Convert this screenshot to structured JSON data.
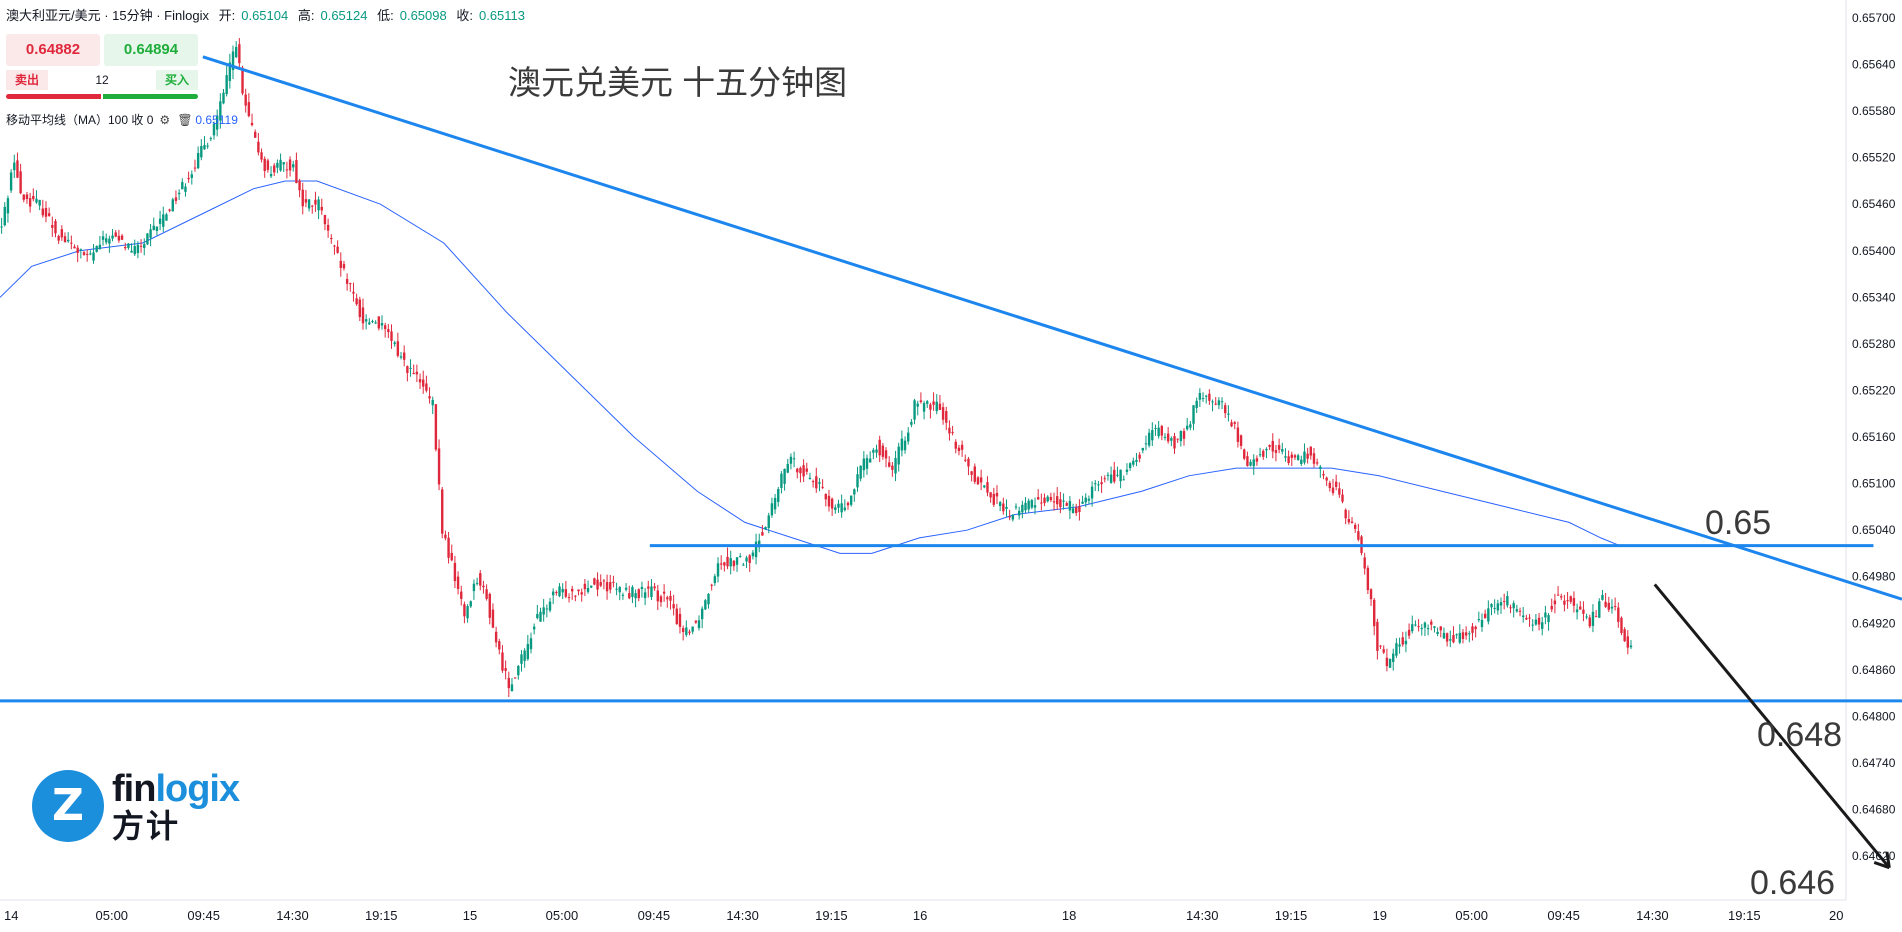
{
  "header": {
    "symbol": "澳大利亚元/美元 · 15分钟 · Finlogix",
    "open_label": "开:",
    "open": "0.65104",
    "high_label": "高:",
    "high": "0.65124",
    "low_label": "低:",
    "low": "0.65098",
    "close_label": "收:",
    "close": "0.65113"
  },
  "trade": {
    "sell_price": "0.64882",
    "buy_price": "0.64894",
    "sell_label": "卖出",
    "buy_label": "买入",
    "quantity": "12"
  },
  "indicator": {
    "label": "移动平均线（MA）100 收 0",
    "value": "0.65119"
  },
  "title": "澳元兑美元 十五分钟图",
  "logo": {
    "text_a": "fin",
    "text_b": "logix",
    "cn": "方计",
    "mark": "Z"
  },
  "levels": {
    "top": "0.65",
    "mid": "0.648",
    "bottom": "0.646"
  },
  "colors": {
    "up": "#089981",
    "down": "#e0283c",
    "trendline": "#1c86ee",
    "ma": "#2962ff",
    "arrow": "#1a1a1a"
  },
  "chart_data": {
    "type": "candlestick",
    "title": "澳元兑美元 十五分钟图",
    "y_ticks": [
      "0.65700",
      "0.65640",
      "0.65580",
      "0.65520",
      "0.65460",
      "0.65400",
      "0.65340",
      "0.65280",
      "0.65220",
      "0.65160",
      "0.65100",
      "0.65040",
      "0.64980",
      "0.64920",
      "0.64860",
      "0.64800",
      "0.64740",
      "0.64680",
      "0.64620"
    ],
    "ylim": [
      0.6459,
      0.6572
    ],
    "x_ticks": [
      "14",
      "05:00",
      "09:45",
      "14:30",
      "19:15",
      "15",
      "05:00",
      "09:45",
      "14:30",
      "19:15",
      "16",
      "18",
      "14:30",
      "19:15",
      "19",
      "05:00",
      "09:45",
      "14:30",
      "19:15",
      "20"
    ],
    "x_tick_index": [
      0,
      34,
      63,
      91,
      119,
      147,
      176,
      205,
      233,
      261,
      289,
      336,
      378,
      406,
      434,
      463,
      492,
      520,
      549,
      578
    ],
    "path": [
      [
        0,
        0.6543
      ],
      [
        4,
        0.6552
      ],
      [
        6,
        0.6547
      ],
      [
        12,
        0.6546
      ],
      [
        18,
        0.6542
      ],
      [
        27,
        0.6539
      ],
      [
        34,
        0.6542
      ],
      [
        42,
        0.654
      ],
      [
        45,
        0.6541
      ],
      [
        52,
        0.6545
      ],
      [
        58,
        0.6549
      ],
      [
        66,
        0.6555
      ],
      [
        70,
        0.656
      ],
      [
        72,
        0.6564
      ],
      [
        74,
        0.6567
      ],
      [
        76,
        0.656
      ],
      [
        80,
        0.6554
      ],
      [
        84,
        0.655
      ],
      [
        88,
        0.6551
      ],
      [
        92,
        0.6551
      ],
      [
        95,
        0.6546
      ],
      [
        100,
        0.6546
      ],
      [
        104,
        0.6541
      ],
      [
        109,
        0.6536
      ],
      [
        114,
        0.6531
      ],
      [
        118,
        0.6531
      ],
      [
        122,
        0.6529
      ],
      [
        128,
        0.6525
      ],
      [
        132,
        0.6523
      ],
      [
        136,
        0.652
      ],
      [
        139,
        0.6504
      ],
      [
        143,
        0.6498
      ],
      [
        146,
        0.6493
      ],
      [
        150,
        0.6498
      ],
      [
        153,
        0.6495
      ],
      [
        157,
        0.6488
      ],
      [
        160,
        0.6484
      ],
      [
        165,
        0.6488
      ],
      [
        168,
        0.6492
      ],
      [
        175,
        0.6496
      ],
      [
        180,
        0.6496
      ],
      [
        186,
        0.6497
      ],
      [
        190,
        0.6497
      ],
      [
        196,
        0.6496
      ],
      [
        200,
        0.6496
      ],
      [
        205,
        0.6496
      ],
      [
        210,
        0.6495
      ],
      [
        215,
        0.6491
      ],
      [
        219,
        0.6492
      ],
      [
        222,
        0.6495
      ],
      [
        226,
        0.65
      ],
      [
        230,
        0.65
      ],
      [
        236,
        0.65
      ],
      [
        240,
        0.6504
      ],
      [
        244,
        0.6508
      ],
      [
        248,
        0.6513
      ],
      [
        252,
        0.6512
      ],
      [
        257,
        0.651
      ],
      [
        262,
        0.6507
      ],
      [
        267,
        0.6507
      ],
      [
        271,
        0.6512
      ],
      [
        276,
        0.6515
      ],
      [
        281,
        0.6512
      ],
      [
        285,
        0.6516
      ],
      [
        288,
        0.652
      ],
      [
        292,
        0.652
      ],
      [
        296,
        0.652
      ],
      [
        300,
        0.6516
      ],
      [
        305,
        0.6512
      ],
      [
        309,
        0.651
      ],
      [
        313,
        0.6508
      ],
      [
        318,
        0.6506
      ],
      [
        322,
        0.6507
      ],
      [
        327,
        0.6508
      ],
      [
        331,
        0.6508
      ],
      [
        336,
        0.6507
      ],
      [
        340,
        0.6507
      ],
      [
        345,
        0.651
      ],
      [
        350,
        0.6511
      ],
      [
        354,
        0.6511
      ],
      [
        358,
        0.6513
      ],
      [
        362,
        0.6516
      ],
      [
        365,
        0.6517
      ],
      [
        370,
        0.6515
      ],
      [
        374,
        0.6517
      ],
      [
        377,
        0.6521
      ],
      [
        381,
        0.6521
      ],
      [
        385,
        0.652
      ],
      [
        389,
        0.6517
      ],
      [
        392,
        0.6513
      ],
      [
        396,
        0.6513
      ],
      [
        400,
        0.6515
      ],
      [
        403,
        0.6514
      ],
      [
        408,
        0.6513
      ],
      [
        412,
        0.6514
      ],
      [
        417,
        0.6511
      ],
      [
        421,
        0.6509
      ],
      [
        424,
        0.6506
      ],
      [
        428,
        0.6503
      ],
      [
        431,
        0.6497
      ],
      [
        434,
        0.6489
      ],
      [
        437,
        0.6487
      ],
      [
        440,
        0.6489
      ],
      [
        444,
        0.6491
      ],
      [
        449,
        0.6492
      ],
      [
        453,
        0.6491
      ],
      [
        458,
        0.649
      ],
      [
        462,
        0.6491
      ],
      [
        466,
        0.6492
      ],
      [
        470,
        0.6494
      ],
      [
        474,
        0.6495
      ],
      [
        478,
        0.6494
      ],
      [
        482,
        0.6492
      ],
      [
        486,
        0.6492
      ],
      [
        490,
        0.6495
      ],
      [
        494,
        0.6495
      ],
      [
        498,
        0.6493
      ],
      [
        501,
        0.6492
      ],
      [
        505,
        0.6495
      ],
      [
        509,
        0.6494
      ],
      [
        512,
        0.649
      ],
      [
        514,
        0.6489
      ]
    ],
    "ma_path": [
      [
        0,
        0.6534
      ],
      [
        10,
        0.6538
      ],
      [
        25,
        0.654
      ],
      [
        45,
        0.6541
      ],
      [
        65,
        0.6545
      ],
      [
        80,
        0.6548
      ],
      [
        90,
        0.6549
      ],
      [
        100,
        0.6549
      ],
      [
        120,
        0.6546
      ],
      [
        140,
        0.6541
      ],
      [
        160,
        0.6532
      ],
      [
        180,
        0.6524
      ],
      [
        200,
        0.6516
      ],
      [
        220,
        0.6509
      ],
      [
        235,
        0.6505
      ],
      [
        250,
        0.6503
      ],
      [
        265,
        0.6501
      ],
      [
        275,
        0.6501
      ],
      [
        290,
        0.6503
      ],
      [
        305,
        0.6504
      ],
      [
        320,
        0.6506
      ],
      [
        340,
        0.6507
      ],
      [
        360,
        0.6509
      ],
      [
        375,
        0.6511
      ],
      [
        390,
        0.6512
      ],
      [
        405,
        0.6512
      ],
      [
        420,
        0.6512
      ],
      [
        435,
        0.6511
      ],
      [
        455,
        0.6509
      ],
      [
        475,
        0.6507
      ],
      [
        495,
        0.6505
      ],
      [
        505,
        0.6503
      ],
      [
        511,
        0.6502
      ]
    ],
    "lines": [
      {
        "name": "resistance trendline",
        "from": [
          64,
          0.6565
        ],
        "to": [
          600,
          0.64951
        ]
      },
      {
        "name": "0.65 level",
        "from": [
          205,
          0.6502
        ],
        "to": [
          591,
          0.6502
        ]
      },
      {
        "name": "0.648 level",
        "from": [
          0,
          0.6482
        ],
        "to": [
          600,
          0.6482
        ]
      },
      {
        "name": "projection arrow",
        "from": [
          522,
          0.6497
        ],
        "to": [
          596,
          0.64605
        ]
      }
    ]
  }
}
